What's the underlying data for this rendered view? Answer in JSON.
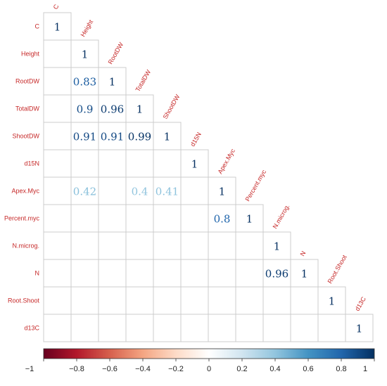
{
  "chart_data": {
    "type": "heatmap",
    "variables": [
      "C",
      "Height",
      "RootDW",
      "TotalDW",
      "ShootDW",
      "d15N",
      "Apex.Myc",
      "Percent.myc",
      "N.microg.",
      "N",
      "Root.Shoot",
      "d13C"
    ],
    "matrix_shape": "lower-triangle",
    "cells": [
      {
        "row": "C",
        "col": "C",
        "value": 1,
        "label": "1"
      },
      {
        "row": "Height",
        "col": "Height",
        "value": 1,
        "label": "1"
      },
      {
        "row": "RootDW",
        "col": "Height",
        "value": 0.83,
        "label": "0.83"
      },
      {
        "row": "RootDW",
        "col": "RootDW",
        "value": 1,
        "label": "1"
      },
      {
        "row": "TotalDW",
        "col": "Height",
        "value": 0.9,
        "label": "0.9"
      },
      {
        "row": "TotalDW",
        "col": "RootDW",
        "value": 0.96,
        "label": "0.96"
      },
      {
        "row": "TotalDW",
        "col": "TotalDW",
        "value": 1,
        "label": "1"
      },
      {
        "row": "ShootDW",
        "col": "Height",
        "value": 0.91,
        "label": "0.91"
      },
      {
        "row": "ShootDW",
        "col": "RootDW",
        "value": 0.91,
        "label": "0.91"
      },
      {
        "row": "ShootDW",
        "col": "TotalDW",
        "value": 0.99,
        "label": "0.99"
      },
      {
        "row": "ShootDW",
        "col": "ShootDW",
        "value": 1,
        "label": "1"
      },
      {
        "row": "d15N",
        "col": "d15N",
        "value": 1,
        "label": "1"
      },
      {
        "row": "Apex.Myc",
        "col": "Height",
        "value": 0.42,
        "label": "0.42"
      },
      {
        "row": "Apex.Myc",
        "col": "TotalDW",
        "value": 0.4,
        "label": "0.4"
      },
      {
        "row": "Apex.Myc",
        "col": "ShootDW",
        "value": 0.41,
        "label": "0.41"
      },
      {
        "row": "Apex.Myc",
        "col": "Apex.Myc",
        "value": 1,
        "label": "1"
      },
      {
        "row": "Percent.myc",
        "col": "Apex.Myc",
        "value": 0.8,
        "label": "0.8"
      },
      {
        "row": "Percent.myc",
        "col": "Percent.myc",
        "value": 1,
        "label": "1"
      },
      {
        "row": "N.microg.",
        "col": "N.microg.",
        "value": 1,
        "label": "1"
      },
      {
        "row": "N",
        "col": "N.microg.",
        "value": 0.96,
        "label": "0.96"
      },
      {
        "row": "N",
        "col": "N",
        "value": 1,
        "label": "1"
      },
      {
        "row": "Root.Shoot",
        "col": "Root.Shoot",
        "value": 1,
        "label": "1"
      },
      {
        "row": "d13C",
        "col": "d13C",
        "value": 1,
        "label": "1"
      }
    ],
    "colorbar": {
      "range": [
        -1,
        1
      ],
      "ticks": [
        "−1",
        "−0.8",
        "−0.6",
        "−0.4",
        "−0.2",
        "0",
        "0.2",
        "0.4",
        "0.6",
        "0.8",
        "1"
      ],
      "colors": [
        "#67001f",
        "#b2182b",
        "#d6604d",
        "#f4a582",
        "#fddbc7",
        "#ffffff",
        "#d1e5f0",
        "#92c5de",
        "#4393c3",
        "#2166ac",
        "#053061"
      ]
    },
    "label_color": "#c62828",
    "grid_color": "#cccccc"
  }
}
